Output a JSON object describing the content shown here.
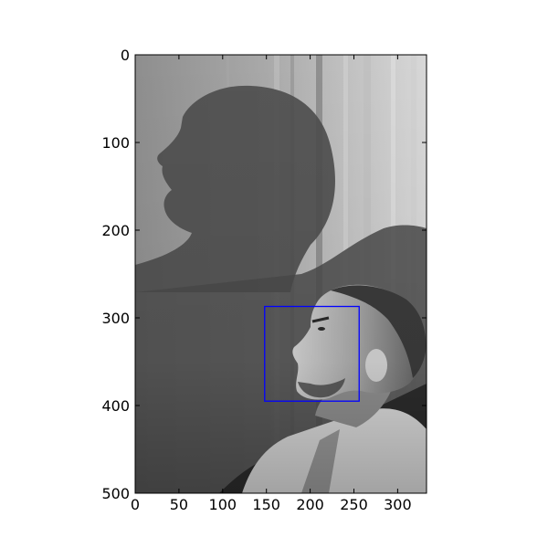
{
  "figure": {
    "x_axis": {
      "range": [
        0,
        333
      ],
      "ticks": [
        0,
        50,
        100,
        150,
        200,
        250,
        300
      ],
      "tick_labels": [
        "0",
        "50",
        "100",
        "150",
        "200",
        "250",
        "300"
      ]
    },
    "y_axis": {
      "range": [
        0,
        500
      ],
      "inverted": true,
      "ticks": [
        0,
        100,
        200,
        300,
        400,
        500
      ],
      "tick_labels": [
        "0",
        "100",
        "200",
        "300",
        "400",
        "500"
      ]
    },
    "image": {
      "mode": "grayscale photograph",
      "subject": "man in profile facing left with his shadow projected on a sheer curtain"
    },
    "detection_box": {
      "x_range": [
        148,
        256
      ],
      "y_range": [
        287,
        395
      ],
      "color": "#0000ff"
    }
  }
}
